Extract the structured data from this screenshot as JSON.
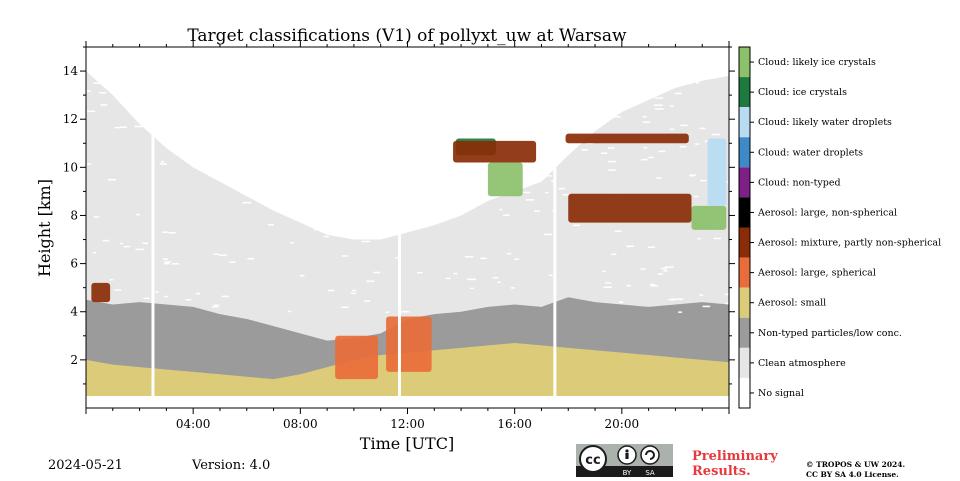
{
  "chart_data": {
    "type": "heatmap",
    "title": "Target classifications (V1) of pollyxt_uw at Warsaw",
    "xlabel": "Time [UTC]",
    "ylabel": "Height [km]",
    "x_range_hours": [
      0,
      24
    ],
    "y_range_km": [
      0,
      15
    ],
    "x_ticks": [
      {
        "hour": 4,
        "label": "04:00"
      },
      {
        "hour": 8,
        "label": "08:00"
      },
      {
        "hour": 12,
        "label": "12:00"
      },
      {
        "hour": 16,
        "label": "16:00"
      },
      {
        "hour": 20,
        "label": "20:00"
      }
    ],
    "y_ticks": [
      {
        "km": 2,
        "label": "2"
      },
      {
        "km": 4,
        "label": "4"
      },
      {
        "km": 6,
        "label": "6"
      },
      {
        "km": 8,
        "label": "8"
      },
      {
        "km": 10,
        "label": "10"
      },
      {
        "km": 12,
        "label": "12"
      },
      {
        "km": 14,
        "label": "14"
      }
    ],
    "legend": [
      {
        "label": "Cloud: likely ice crystals",
        "color": "#8cc06a"
      },
      {
        "label": "Cloud: ice crystals",
        "color": "#1c7a3e"
      },
      {
        "label": "Cloud: likely water droplets",
        "color": "#b7dcf2"
      },
      {
        "label": "Cloud: water droplets",
        "color": "#3e8ac8"
      },
      {
        "label": "Cloud: non-typed",
        "color": "#7e2087"
      },
      {
        "label": "Aerosol: large, non-spherical",
        "color": "#000000"
      },
      {
        "label": "Aerosol: mixture, partly non-spherical",
        "color": "#8b2c07"
      },
      {
        "label": "Aerosol: large, spherical",
        "color": "#e96d3a"
      },
      {
        "label": "Aerosol: small",
        "color": "#dccb78"
      },
      {
        "label": "Non-typed particles/low conc.",
        "color": "#9b9b9b"
      },
      {
        "label": "Clean atmosphere",
        "color": "#e6e6e6"
      },
      {
        "label": "No signal",
        "color": "#ffffff"
      }
    ],
    "data_gaps_hours": [
      2.5,
      11.7,
      17.5
    ],
    "layers": [
      {
        "class": "Aerosol: small",
        "base_km": 0.5,
        "top_km": [
          2.0,
          1.8,
          1.7,
          1.6,
          1.5,
          1.4,
          1.3,
          1.2,
          1.4,
          1.7,
          2.0,
          2.2,
          2.3,
          2.4,
          2.5,
          2.6,
          2.7,
          2.6,
          2.5,
          2.4,
          2.3,
          2.2,
          2.1,
          2.0,
          1.9
        ]
      },
      {
        "class": "Non-typed particles/low conc.",
        "base_km": 0.5,
        "top_km": [
          4.5,
          4.3,
          4.4,
          4.3,
          4.2,
          3.9,
          3.7,
          3.4,
          3.1,
          2.8,
          2.9,
          3.1,
          3.7,
          3.9,
          4.0,
          4.2,
          4.3,
          4.2,
          4.6,
          4.4,
          4.3,
          4.2,
          4.3,
          4.4,
          4.3
        ]
      },
      {
        "class": "Clean atmosphere",
        "base_km": 0.5,
        "top_km": [
          14.0,
          13.0,
          11.8,
          10.8,
          10.0,
          9.4,
          8.8,
          8.2,
          7.7,
          7.2,
          7.0,
          7.0,
          7.3,
          7.6,
          8.0,
          8.6,
          9.0,
          9.4,
          10.5,
          11.5,
          12.3,
          12.8,
          13.3,
          13.6,
          13.8
        ]
      }
    ],
    "features": [
      {
        "class": "Aerosol: mixture, partly non-spherical",
        "t_start_h": 0.2,
        "t_end_h": 0.9,
        "base_km": 4.4,
        "top_km": 5.2
      },
      {
        "class": "Aerosol: large, spherical",
        "t_start_h": 9.3,
        "t_end_h": 10.9,
        "base_km": 1.2,
        "top_km": 3.0
      },
      {
        "class": "Aerosol: large, spherical",
        "t_start_h": 11.2,
        "t_end_h": 12.9,
        "base_km": 1.5,
        "top_km": 3.8
      },
      {
        "class": "Cloud: ice crystals",
        "t_start_h": 13.8,
        "t_end_h": 15.3,
        "base_km": 10.5,
        "top_km": 11.2
      },
      {
        "class": "Aerosol: mixture, partly non-spherical",
        "t_start_h": 13.7,
        "t_end_h": 16.8,
        "base_km": 10.2,
        "top_km": 11.1
      },
      {
        "class": "Cloud: likely ice crystals",
        "t_start_h": 15.0,
        "t_end_h": 16.3,
        "base_km": 8.8,
        "top_km": 10.2
      },
      {
        "class": "Aerosol: mixture, partly non-spherical",
        "t_start_h": 18.0,
        "t_end_h": 22.6,
        "base_km": 7.7,
        "top_km": 8.9
      },
      {
        "class": "Aerosol: mixture, partly non-spherical",
        "t_start_h": 17.9,
        "t_end_h": 22.5,
        "base_km": 11.0,
        "top_km": 11.4
      },
      {
        "class": "Cloud: likely ice crystals",
        "t_start_h": 22.6,
        "t_end_h": 23.9,
        "base_km": 7.4,
        "top_km": 8.4
      },
      {
        "class": "Cloud: likely water droplets",
        "t_start_h": 23.2,
        "t_end_h": 23.9,
        "base_km": 8.4,
        "top_km": 11.2
      }
    ]
  },
  "footer": {
    "date": "2024-05-21",
    "version": "Version: 4.0",
    "preliminary_line1": "Preliminary",
    "preliminary_line2": "Results.",
    "copyright_line1": "© TROPOS & UW 2024.",
    "copyright_line2": "CC BY SA 4.0 License.",
    "cc_badge_text": "cc",
    "cc_by": "BY",
    "cc_sa": "SA"
  }
}
